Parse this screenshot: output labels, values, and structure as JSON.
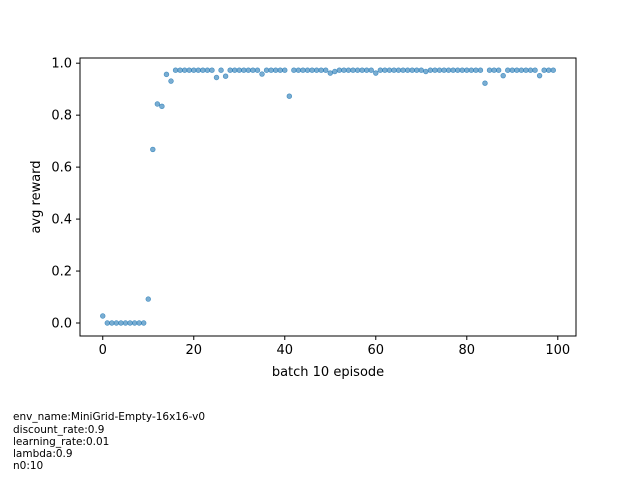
{
  "chart_data": {
    "type": "scatter",
    "title": "",
    "xlabel": "batch 10 episode",
    "ylabel": "avg reward",
    "xlim": [
      -5,
      104
    ],
    "ylim": [
      -0.05,
      1.02
    ],
    "xticks": [
      0,
      20,
      40,
      60,
      80,
      100
    ],
    "yticks": [
      0.0,
      0.2,
      0.4,
      0.6,
      0.8,
      1.0
    ],
    "xtick_labels": [
      "0",
      "20",
      "40",
      "60",
      "80",
      "100"
    ],
    "ytick_labels": [
      "0.0",
      "0.2",
      "0.4",
      "0.6",
      "0.8",
      "1.0"
    ],
    "grid": false,
    "marker_color": "#1f77b4",
    "x": [
      0,
      1,
      2,
      3,
      4,
      5,
      6,
      7,
      8,
      9,
      10,
      11,
      12,
      13,
      14,
      15,
      16,
      17,
      18,
      19,
      20,
      21,
      22,
      23,
      24,
      25,
      26,
      27,
      28,
      29,
      30,
      31,
      32,
      33,
      34,
      35,
      36,
      37,
      38,
      39,
      40,
      41,
      42,
      43,
      44,
      45,
      46,
      47,
      48,
      49,
      50,
      51,
      52,
      53,
      54,
      55,
      56,
      57,
      58,
      59,
      60,
      61,
      62,
      63,
      64,
      65,
      66,
      67,
      68,
      69,
      70,
      71,
      72,
      73,
      74,
      75,
      76,
      77,
      78,
      79,
      80,
      81,
      82,
      83,
      84,
      85,
      86,
      87,
      88,
      89,
      90,
      91,
      92,
      93,
      94,
      95,
      96,
      97,
      98,
      99
    ],
    "y": [
      0.027,
      0.0,
      0.0,
      0.0,
      0.0,
      0.0,
      0.0,
      0.0,
      0.0,
      0.0,
      0.092,
      0.668,
      0.843,
      0.834,
      0.957,
      0.931,
      0.973,
      0.973,
      0.973,
      0.973,
      0.973,
      0.973,
      0.973,
      0.973,
      0.973,
      0.945,
      0.973,
      0.95,
      0.973,
      0.973,
      0.973,
      0.973,
      0.973,
      0.973,
      0.973,
      0.958,
      0.973,
      0.973,
      0.973,
      0.973,
      0.973,
      0.873,
      0.973,
      0.973,
      0.973,
      0.973,
      0.973,
      0.973,
      0.973,
      0.973,
      0.962,
      0.968,
      0.973,
      0.973,
      0.973,
      0.973,
      0.973,
      0.973,
      0.973,
      0.973,
      0.962,
      0.973,
      0.973,
      0.973,
      0.973,
      0.973,
      0.973,
      0.973,
      0.973,
      0.973,
      0.973,
      0.968,
      0.973,
      0.973,
      0.973,
      0.973,
      0.973,
      0.973,
      0.973,
      0.973,
      0.973,
      0.973,
      0.973,
      0.973,
      0.923,
      0.973,
      0.973,
      0.973,
      0.952,
      0.973,
      0.973,
      0.973,
      0.973,
      0.973,
      0.973,
      0.973,
      0.952,
      0.973,
      0.973,
      0.973
    ]
  },
  "notes": [
    "env_name:MiniGrid-Empty-16x16-v0",
    "discount_rate:0.9",
    "learning_rate:0.01",
    "lambda:0.9",
    "n0:10"
  ]
}
